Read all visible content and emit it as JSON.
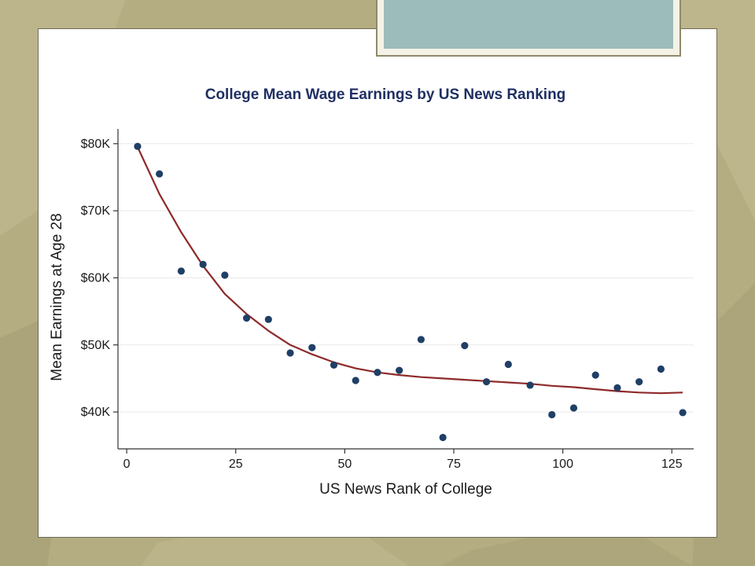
{
  "colors": {
    "background": "#b4ad82",
    "title": "#1f2f63",
    "points": "#1f3f66",
    "fit_line": "#8e2a2a",
    "grid": "#e9e9e9"
  },
  "chart_data": {
    "type": "scatter",
    "title": "College Mean Wage Earnings by US News Ranking",
    "xlabel": "US News Rank of College",
    "ylabel": "Mean Earnings at Age 28",
    "xlim": [
      -2,
      130
    ],
    "ylim": [
      34.5,
      81.5
    ],
    "x_ticks": [
      0,
      25,
      50,
      75,
      100,
      125
    ],
    "y_ticks": [
      40,
      50,
      60,
      70,
      80
    ],
    "y_tick_labels": [
      "$40K",
      "$50K",
      "$60K",
      "$70K",
      "$80K"
    ],
    "grid": true,
    "points": {
      "x": [
        2.5,
        7.5,
        12.5,
        17.5,
        22.5,
        27.5,
        32.5,
        37.5,
        42.5,
        47.5,
        52.5,
        57.5,
        62.5,
        67.5,
        72.5,
        77.5,
        82.5,
        87.5,
        92.5,
        97.5,
        102.5,
        107.5,
        112.5,
        117.5,
        122.5,
        127.5
      ],
      "y": [
        79.6,
        75.5,
        61.0,
        62.0,
        60.4,
        54.0,
        53.8,
        48.8,
        49.6,
        47.0,
        44.7,
        45.9,
        46.2,
        50.8,
        36.2,
        49.9,
        44.5,
        47.1,
        44.0,
        39.6,
        40.6,
        45.5,
        43.6,
        44.5,
        46.4,
        39.9
      ]
    },
    "fit": {
      "x": [
        2.5,
        7.5,
        12.5,
        17.5,
        22.5,
        27.5,
        32.5,
        37.5,
        42.5,
        47.5,
        52.5,
        57.5,
        62.5,
        67.5,
        72.5,
        77.5,
        82.5,
        87.5,
        92.5,
        97.5,
        102.5,
        107.5,
        112.5,
        117.5,
        122.5,
        127.5
      ],
      "y": [
        79.5,
        72.5,
        66.8,
        61.8,
        57.6,
        54.6,
        52.1,
        50.0,
        48.6,
        47.4,
        46.5,
        45.9,
        45.5,
        45.2,
        45.0,
        44.8,
        44.6,
        44.4,
        44.2,
        43.9,
        43.7,
        43.4,
        43.1,
        42.9,
        42.8,
        42.9
      ]
    }
  }
}
